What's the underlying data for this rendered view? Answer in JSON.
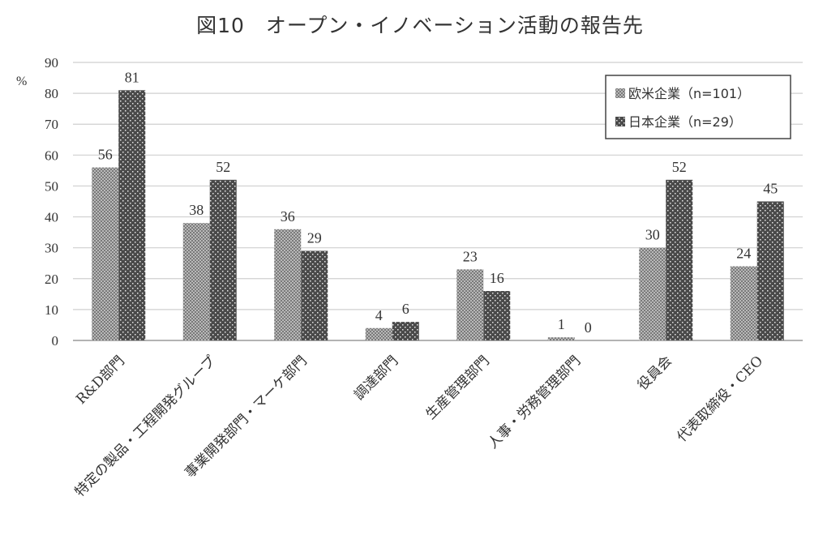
{
  "chart_data": {
    "type": "bar",
    "title": "図10　オープン・イノベーション活動の報告先",
    "ylabel": "%",
    "xlabel": "",
    "ylim": [
      0,
      90
    ],
    "yticks": [
      0,
      10,
      20,
      30,
      40,
      50,
      60,
      70,
      80,
      90
    ],
    "grid": true,
    "legend_position": "top-right",
    "categories": [
      "R&D部門",
      "特定の製品・工程開発グループ",
      "事業開発部門・マーケ部門",
      "調達部門",
      "生産管理部門",
      "人事・労務管理部門",
      "役員会",
      "代表取締役・CEO"
    ],
    "series": [
      {
        "name": "欧米企業（n=101）",
        "values": [
          56,
          38,
          36,
          4,
          23,
          1,
          30,
          24
        ],
        "color": "#aaaaaa"
      },
      {
        "name": "日本企業（n=29）",
        "values": [
          81,
          52,
          29,
          6,
          16,
          0,
          52,
          45
        ],
        "color": "#4a4a4a"
      }
    ]
  }
}
